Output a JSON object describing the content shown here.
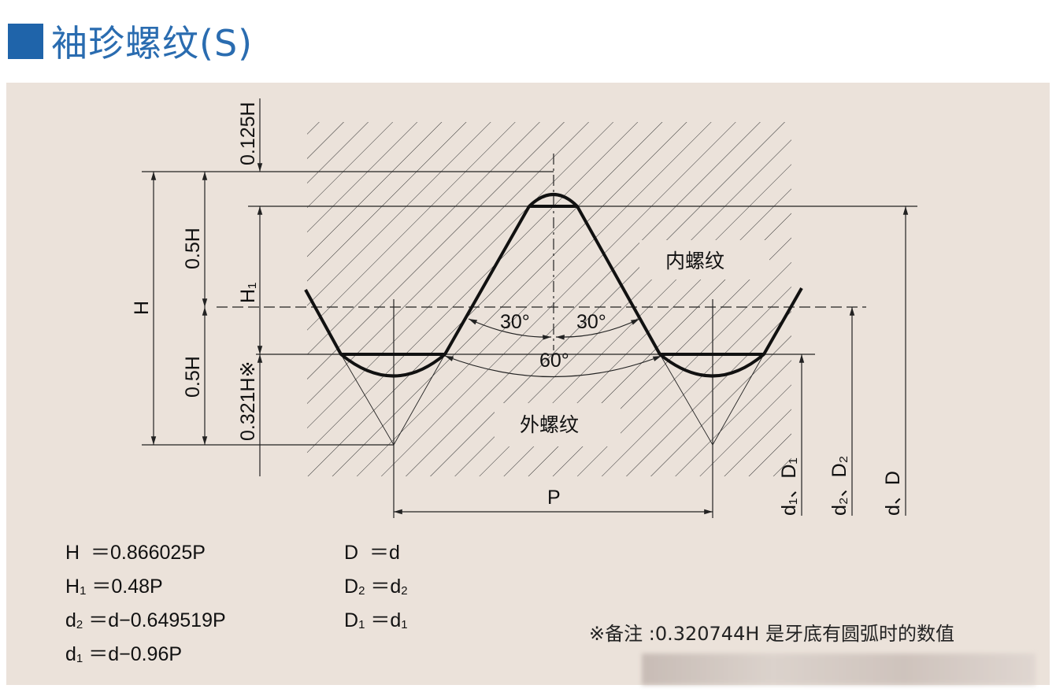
{
  "title": "袖珍螺纹(S)",
  "colors": {
    "accent": "#1f64aa",
    "panel": "#ebe2da"
  },
  "diagram": {
    "labels": {
      "h0125": "0.125H",
      "h": "H",
      "h05a": "0.5H",
      "h05b": "0.5H",
      "h1": "H₁",
      "h0321": "0.321H※",
      "internal": "内螺纹",
      "external": "外螺纹",
      "a30l": "30°",
      "a30r": "30°",
      "a60": "60°",
      "p": "P",
      "d1": "d₁、D₁",
      "d2": "d₂、D₂",
      "d": "d、D"
    }
  },
  "formulas": {
    "left": [
      {
        "sym": "H",
        "sub": "",
        "eq": "＝0.866025P"
      },
      {
        "sym": "H",
        "sub": "1",
        "eq": "＝0.48P"
      },
      {
        "sym": "d",
        "sub": "2",
        "eq": "＝d−0.649519P"
      },
      {
        "sym": "d",
        "sub": "1",
        "eq": "＝d−0.96P"
      }
    ],
    "right": [
      {
        "sym": "D",
        "sub": "",
        "eq": "＝d",
        "eqsub": ""
      },
      {
        "sym": "D",
        "sub": "2",
        "eq": "＝d",
        "eqsub": "2"
      },
      {
        "sym": "D",
        "sub": "1",
        "eq": "＝d",
        "eqsub": "1"
      }
    ]
  },
  "note": "※备注 :0.320744H 是牙底有圆弧时的数值"
}
